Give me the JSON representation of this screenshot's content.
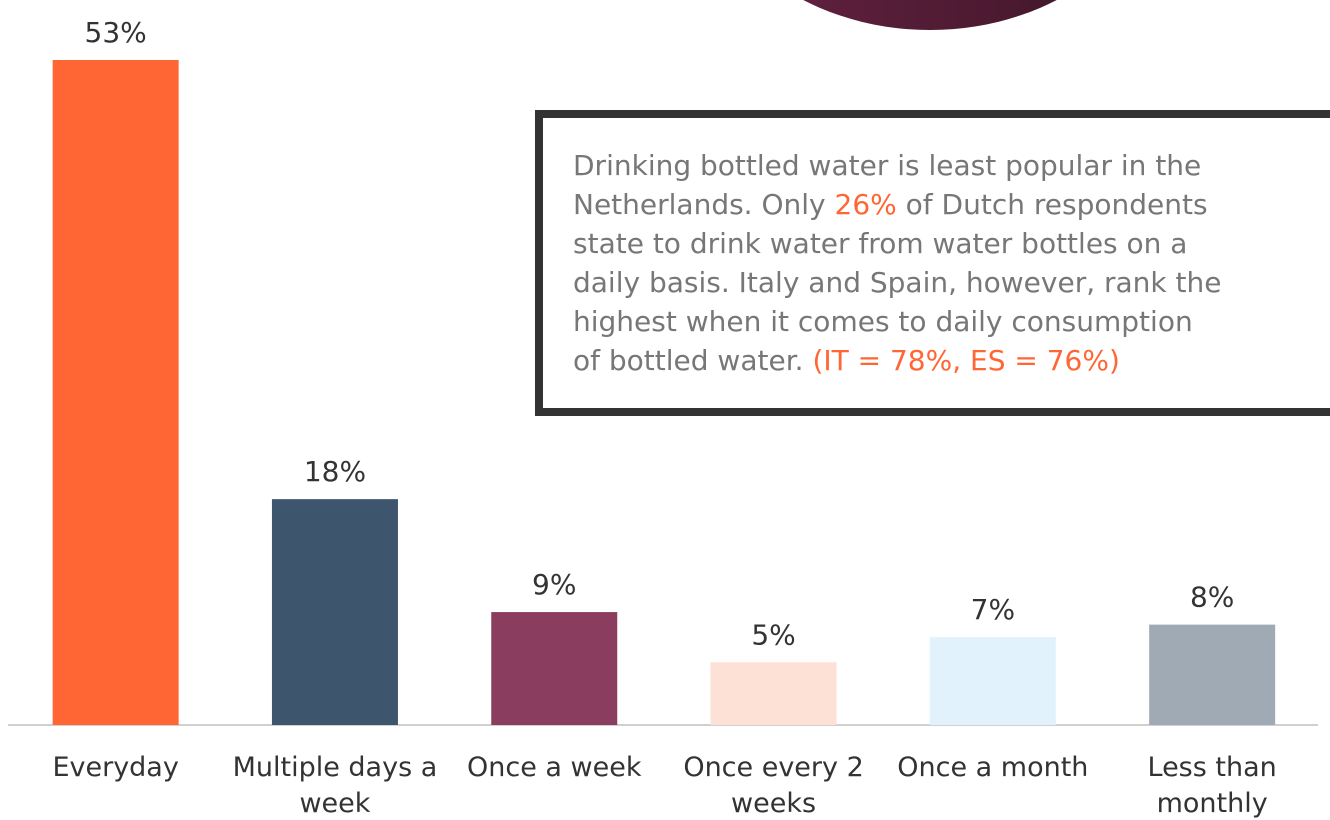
{
  "chart_data": {
    "type": "bar",
    "categories": [
      "Everyday",
      "Multiple days a week",
      "Once a week",
      "Once every 2 weeks",
      "Once a month",
      "Less than monthly"
    ],
    "values": [
      53,
      18,
      9,
      5,
      7,
      8
    ],
    "value_labels": [
      "53%",
      "18%",
      "9%",
      "5%",
      "7%",
      "8%"
    ],
    "colors": [
      "#ff6633",
      "#3d566e",
      "#8b3d5f",
      "#fde0d6",
      "#e1f2fc",
      "#a0aab4"
    ],
    "annotation": {
      "highlight_color": "#ff6633",
      "lines": [
        [
          "Drinking bottled water is least popular in the"
        ],
        [
          "Netherlands. Only ",
          {
            "text": "26%",
            "color": "#ff6633"
          },
          " of Dutch respondents"
        ],
        [
          "state to drink water from water bottles on a"
        ],
        [
          "daily basis. Italy and Spain, however, rank the"
        ],
        [
          "highest when it comes to daily consumption"
        ],
        [
          "of bottled water. ",
          {
            "text": "(IT = 78%, ES = 76%)",
            "color": "#ff6633"
          }
        ]
      ]
    }
  }
}
